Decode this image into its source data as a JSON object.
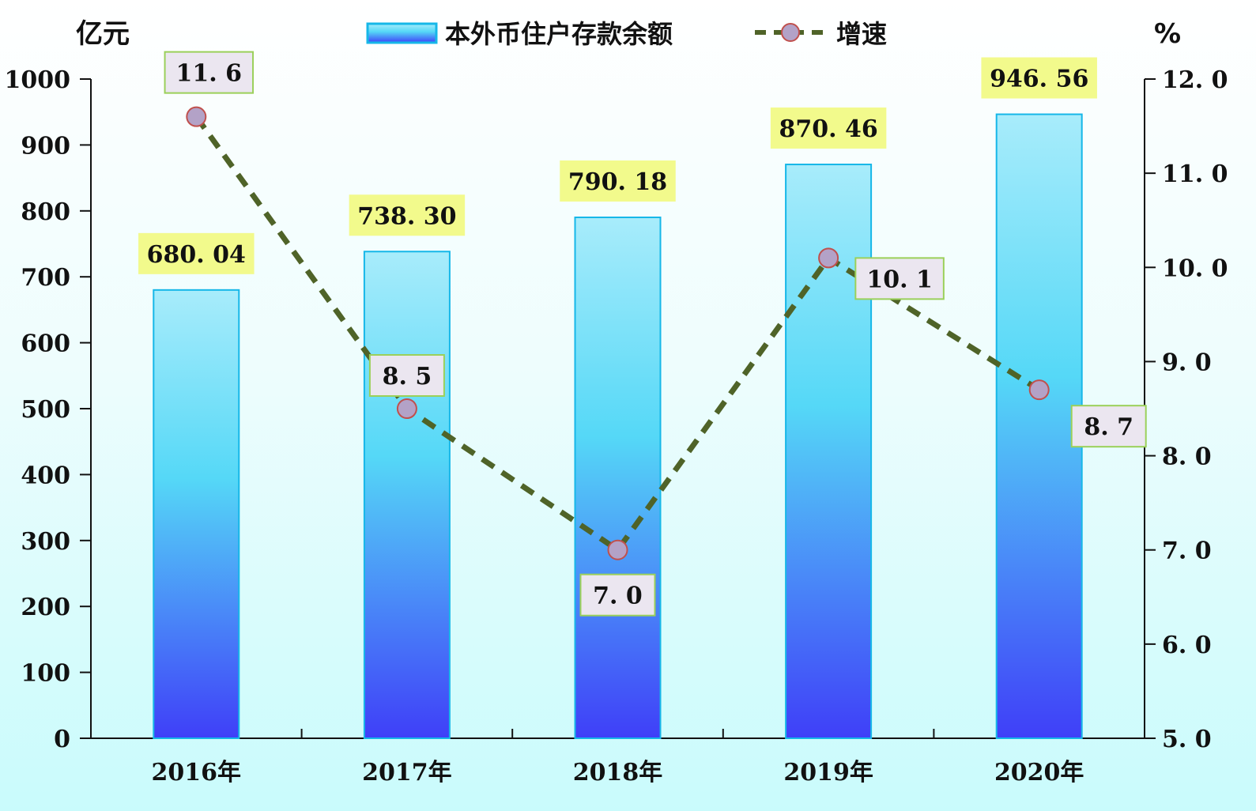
{
  "chart_data": {
    "type": "bar",
    "categories": [
      "2016年",
      "2017年",
      "2018年",
      "2019年",
      "2020年"
    ],
    "series": [
      {
        "name": "本外币住户存款余额",
        "type": "bar",
        "axis": "left",
        "values": [
          680.04,
          738.3,
          790.18,
          870.46,
          946.56
        ],
        "labels": [
          "680. 04",
          "738. 30",
          "790. 18",
          "870. 46",
          "946. 56"
        ]
      },
      {
        "name": "增速",
        "type": "line",
        "axis": "right",
        "values": [
          11.6,
          8.5,
          7.0,
          10.1,
          8.7
        ],
        "labels": [
          "11. 6",
          "8. 5",
          "7. 0",
          "10. 1",
          "8. 7"
        ]
      }
    ],
    "left_axis": {
      "unit": "亿元",
      "ylim": [
        0,
        1000
      ],
      "ticks": [
        "0",
        "100",
        "200",
        "300",
        "400",
        "500",
        "600",
        "700",
        "800",
        "900",
        "1000"
      ]
    },
    "right_axis": {
      "unit": "%",
      "ylim": [
        5.0,
        12.0
      ],
      "ticks": [
        "5. 0",
        "6. 0",
        "7. 0",
        "8. 0",
        "9. 0",
        "10. 0",
        "11. 0",
        "12. 0"
      ]
    },
    "legend_position": "top-center",
    "grid": false,
    "colors": {
      "bar_top": "#a8ecfb",
      "bar_mid": "#55d8f7",
      "bar_bottom": "#3f3ff8",
      "bar_border": "#16b7e8",
      "line": "#4f6328",
      "marker_fill": "#b3a2c7",
      "marker_stroke": "#c0504d",
      "bar_label_bg": "#f2fa8c",
      "rate_label_bg": "#ebe6f0",
      "rate_label_border": "#9bd05a"
    }
  }
}
